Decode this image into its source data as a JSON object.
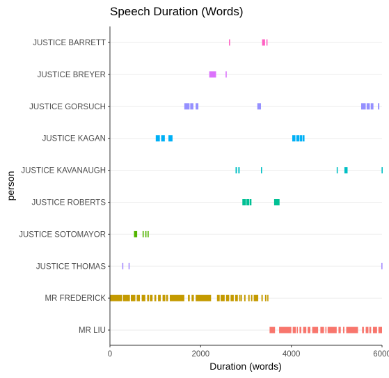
{
  "chart_data": {
    "type": "scatter",
    "mark": "vertical-segment",
    "title": "Speech Duration (Words)",
    "xlabel": "Duration (words)",
    "ylabel": "person",
    "xlim": [
      0,
      6000
    ],
    "xticks": [
      0,
      2000,
      4000,
      6000
    ],
    "xtick_labels": [
      "0",
      "2000",
      "4000",
      "6000"
    ],
    "grid": true,
    "legend": "none",
    "series": [
      {
        "category": "JUSTICE BARRETT",
        "color": "#FF61C3",
        "intervals": [
          [
            2625,
            2645
          ],
          [
            3355,
            3420
          ],
          [
            3450,
            3470
          ]
        ]
      },
      {
        "category": "JUSTICE BREYER",
        "color": "#DB72FB",
        "intervals": [
          [
            2190,
            2340
          ],
          [
            2550,
            2570
          ]
        ]
      },
      {
        "category": "JUSTICE GORSUCH",
        "color": "#9590FF",
        "intervals": [
          [
            1640,
            1755
          ],
          [
            1770,
            1840
          ],
          [
            1890,
            1950
          ],
          [
            3250,
            3330
          ],
          [
            5540,
            5640
          ],
          [
            5660,
            5730
          ],
          [
            5750,
            5810
          ],
          [
            5910,
            5940
          ]
        ]
      },
      {
        "category": "JUSTICE KAGAN",
        "color": "#00B0F6",
        "intervals": [
          [
            1010,
            1100
          ],
          [
            1130,
            1210
          ],
          [
            1290,
            1380
          ],
          [
            4020,
            4090
          ],
          [
            4110,
            4180
          ],
          [
            4190,
            4240
          ],
          [
            4250,
            4290
          ]
        ]
      },
      {
        "category": "JUSTICE KAVANAUGH",
        "color": "#00BFC4",
        "intervals": [
          [
            2770,
            2800
          ],
          [
            2830,
            2860
          ],
          [
            3330,
            3350
          ],
          [
            5000,
            5020
          ],
          [
            5170,
            5240
          ],
          [
            5990,
            6000
          ]
        ]
      },
      {
        "category": "JUSTICE ROBERTS",
        "color": "#00C094",
        "intervals": [
          [
            2920,
            3000
          ],
          [
            3010,
            3070
          ],
          [
            3080,
            3120
          ],
          [
            3620,
            3740
          ]
        ]
      },
      {
        "category": "JUSTICE SOTOMAYOR",
        "color": "#53B400",
        "intervals": [
          [
            530,
            600
          ],
          [
            720,
            740
          ],
          [
            780,
            800
          ],
          [
            830,
            850
          ]
        ]
      },
      {
        "category": "JUSTICE THOMAS",
        "color": "#A58AFF",
        "intervals": [
          [
            270,
            290
          ],
          [
            410,
            430
          ],
          [
            5985,
            6000
          ]
        ]
      },
      {
        "category": "MR FREDERICK",
        "color": "#C49A00",
        "intervals": [
          [
            0,
            270
          ],
          [
            290,
            440
          ],
          [
            460,
            560
          ],
          [
            590,
            660
          ],
          [
            700,
            780
          ],
          [
            820,
            860
          ],
          [
            880,
            940
          ],
          [
            980,
            1020
          ],
          [
            1060,
            1120
          ],
          [
            1160,
            1220
          ],
          [
            1240,
            1280
          ],
          [
            1320,
            1640
          ],
          [
            1720,
            1760
          ],
          [
            1800,
            1850
          ],
          [
            1890,
            2230
          ],
          [
            2360,
            2420
          ],
          [
            2440,
            2530
          ],
          [
            2560,
            2630
          ],
          [
            2660,
            2730
          ],
          [
            2760,
            2820
          ],
          [
            2850,
            2870
          ],
          [
            2880,
            2910
          ],
          [
            2960,
            2990
          ],
          [
            3050,
            3080
          ],
          [
            3110,
            3140
          ],
          [
            3170,
            3270
          ],
          [
            3340,
            3370
          ],
          [
            3420,
            3450
          ],
          [
            3470,
            3490
          ]
        ]
      },
      {
        "category": "MR LIU",
        "color": "#F8766D",
        "intervals": [
          [
            3520,
            3640
          ],
          [
            3730,
            4000
          ],
          [
            4030,
            4100
          ],
          [
            4120,
            4140
          ],
          [
            4180,
            4220
          ],
          [
            4260,
            4330
          ],
          [
            4360,
            4420
          ],
          [
            4460,
            4590
          ],
          [
            4640,
            4720
          ],
          [
            4750,
            4770
          ],
          [
            4800,
            5000
          ],
          [
            5040,
            5090
          ],
          [
            5140,
            5170
          ],
          [
            5210,
            5470
          ],
          [
            5560,
            5600
          ],
          [
            5640,
            5700
          ],
          [
            5720,
            5760
          ],
          [
            5800,
            5890
          ],
          [
            5920,
            6000
          ]
        ]
      }
    ],
    "series_colors_order_note": ""
  }
}
